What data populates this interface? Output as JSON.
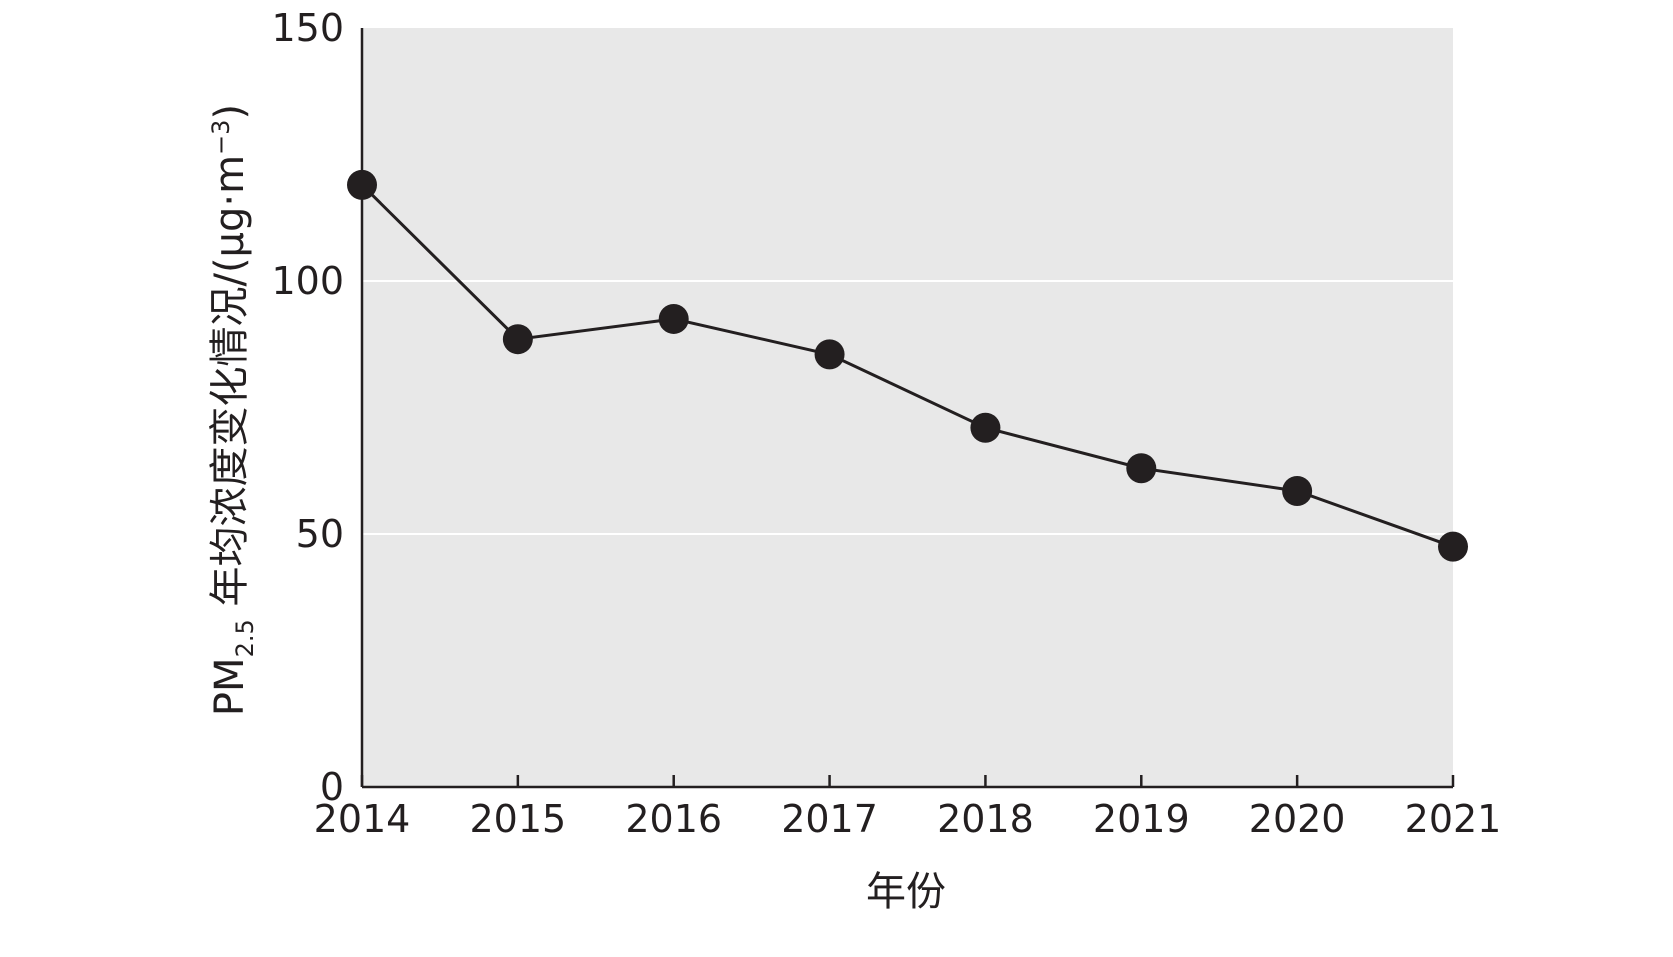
{
  "chart_data": {
    "type": "line",
    "xlabel": "年份",
    "ylabel": {
      "prefix": "PM",
      "subscript": "2.5",
      "main": " 年均浓度变化情况/(μg·m",
      "superscript": "−3",
      "suffix": ")"
    },
    "x": [
      "2014",
      "2015",
      "2016",
      "2017",
      "2018",
      "2019",
      "2020",
      "2021"
    ],
    "series": [
      {
        "values": [
          119,
          88.5,
          92.5,
          85.5,
          71,
          63,
          58.5,
          47.5
        ]
      }
    ],
    "ylim": [
      0,
      150
    ],
    "yticks": [
      0,
      50,
      100,
      150
    ],
    "grid": true,
    "colors": {
      "plot_bg": "#e8e8e8",
      "grid": "#ffffff",
      "line": "#231f20",
      "marker": "#231f20",
      "axis": "#231f20"
    }
  }
}
